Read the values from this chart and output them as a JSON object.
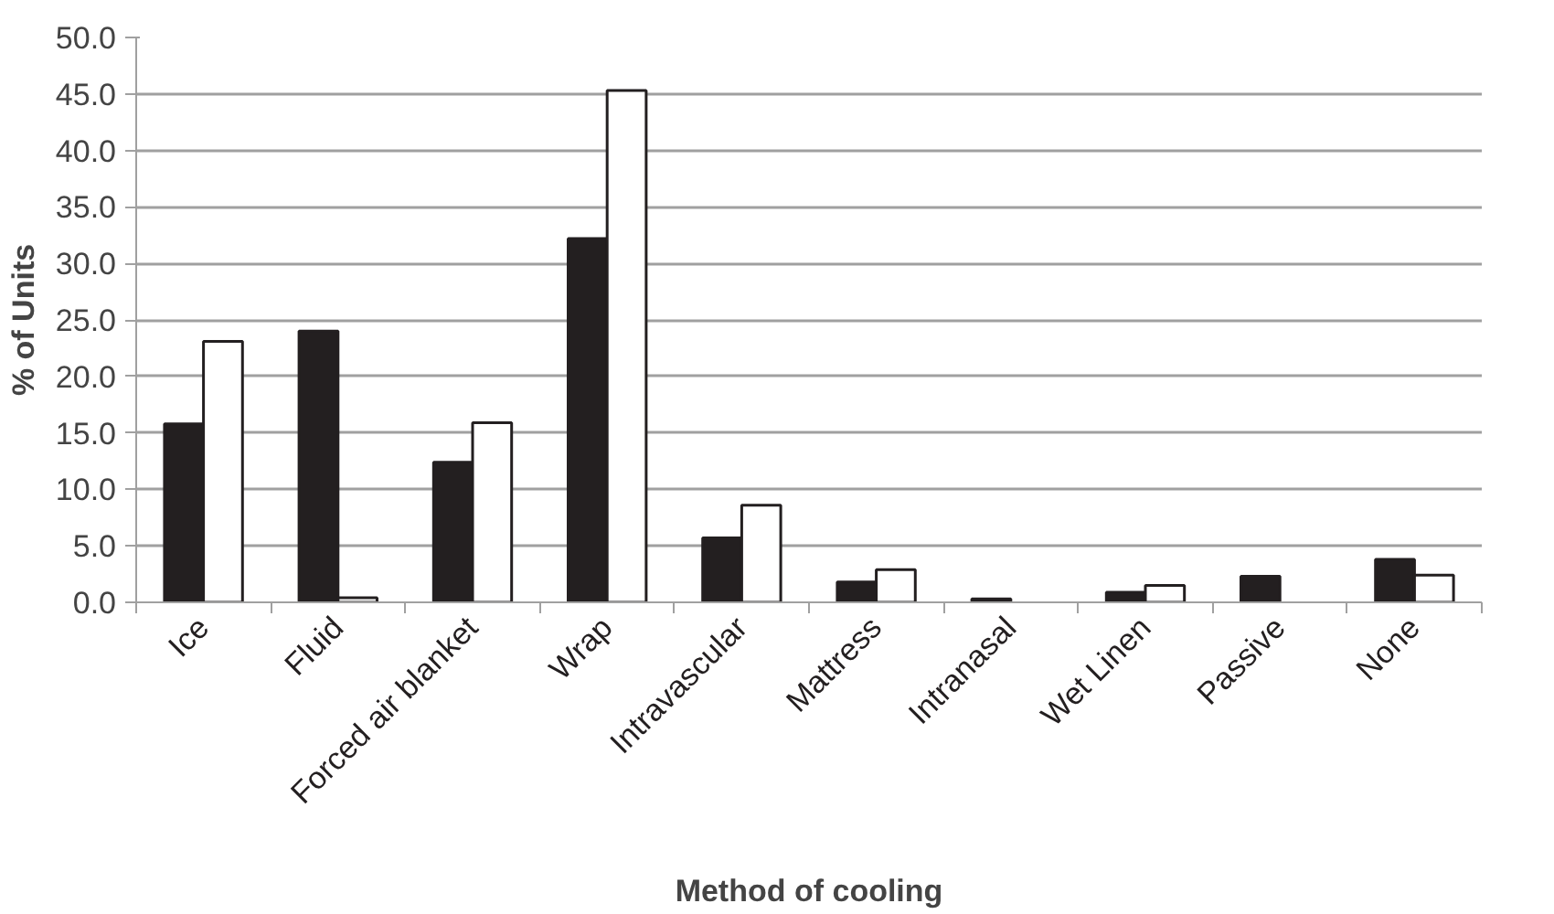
{
  "chart_data": {
    "type": "bar",
    "xlabel": "Method of cooling",
    "ylabel": "% of Units",
    "categories": [
      "Ice",
      "Fluid",
      "Forced air blanket",
      "Wrap",
      "Intravascular",
      "Mattress",
      "Intranasal",
      "Wet Linen",
      "Passive",
      "None"
    ],
    "series": [
      {
        "color": "#231f20",
        "values": [
          15.8,
          24.0,
          12.4,
          32.2,
          5.7,
          1.8,
          0.3,
          0.9,
          2.3,
          3.8
        ]
      },
      {
        "color": "#ffffff",
        "values": [
          23.1,
          0.4,
          15.9,
          45.3,
          8.6,
          2.9,
          null,
          1.5,
          null,
          2.4
        ]
      }
    ],
    "ylim": [
      0,
      50
    ],
    "yticks": [
      {
        "value": 0,
        "label": "0.0"
      },
      {
        "value": 5,
        "label": "5.0"
      },
      {
        "value": 10,
        "label": "10.0"
      },
      {
        "value": 15,
        "label": "15.0"
      },
      {
        "value": 20,
        "label": "20.0"
      },
      {
        "value": 25,
        "label": "25.0"
      },
      {
        "value": 30,
        "label": "30.0"
      },
      {
        "value": 35,
        "label": "35.0"
      },
      {
        "value": 40,
        "label": "40.0"
      },
      {
        "value": 45,
        "label": "45.0"
      },
      {
        "value": 50,
        "label": "50.0"
      }
    ],
    "grid": "y"
  }
}
